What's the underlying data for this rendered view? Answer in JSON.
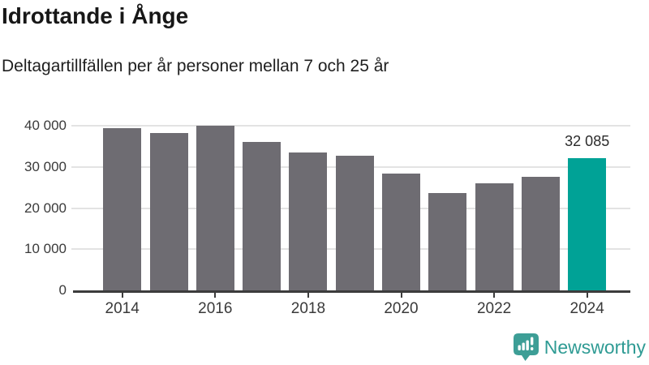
{
  "chart_data": {
    "type": "bar",
    "title": "Idrottande i Ånge",
    "subtitle": "Deltagartillfällen per år personer mellan 7 och 25 år",
    "categories": [
      "2014",
      "2015",
      "2016",
      "2017",
      "2018",
      "2019",
      "2020",
      "2021",
      "2022",
      "2023",
      "2024"
    ],
    "values": [
      39500,
      38200,
      40100,
      36000,
      33500,
      32700,
      28400,
      23700,
      26100,
      27600,
      32085
    ],
    "xlabel": "",
    "ylabel": "",
    "ylim": [
      0,
      42365
    ],
    "grid": true,
    "legend": false,
    "y_ticks": [
      {
        "value": 0,
        "label": "0"
      },
      {
        "value": 10000,
        "label": "10 000"
      },
      {
        "value": 20000,
        "label": "20 000"
      },
      {
        "value": 30000,
        "label": "30 000"
      },
      {
        "value": 40000,
        "label": "40 000"
      }
    ],
    "x_ticks": [
      {
        "bar_index": 0,
        "label": "2014"
      },
      {
        "bar_index": 2,
        "label": "2016"
      },
      {
        "bar_index": 4,
        "label": "2018"
      },
      {
        "bar_index": 6,
        "label": "2020"
      },
      {
        "bar_index": 8,
        "label": "2022"
      },
      {
        "bar_index": 10,
        "label": "2024"
      }
    ],
    "bar_color": "#6e6c72",
    "highlight_color": "#00a296",
    "highlight_index": 10,
    "annotation": {
      "text": "32 085",
      "bar_index": 10
    }
  },
  "footer": {
    "brand": "Newsworthy",
    "brand_color": "#2f9b94",
    "icon_color": "#3d9e96"
  }
}
